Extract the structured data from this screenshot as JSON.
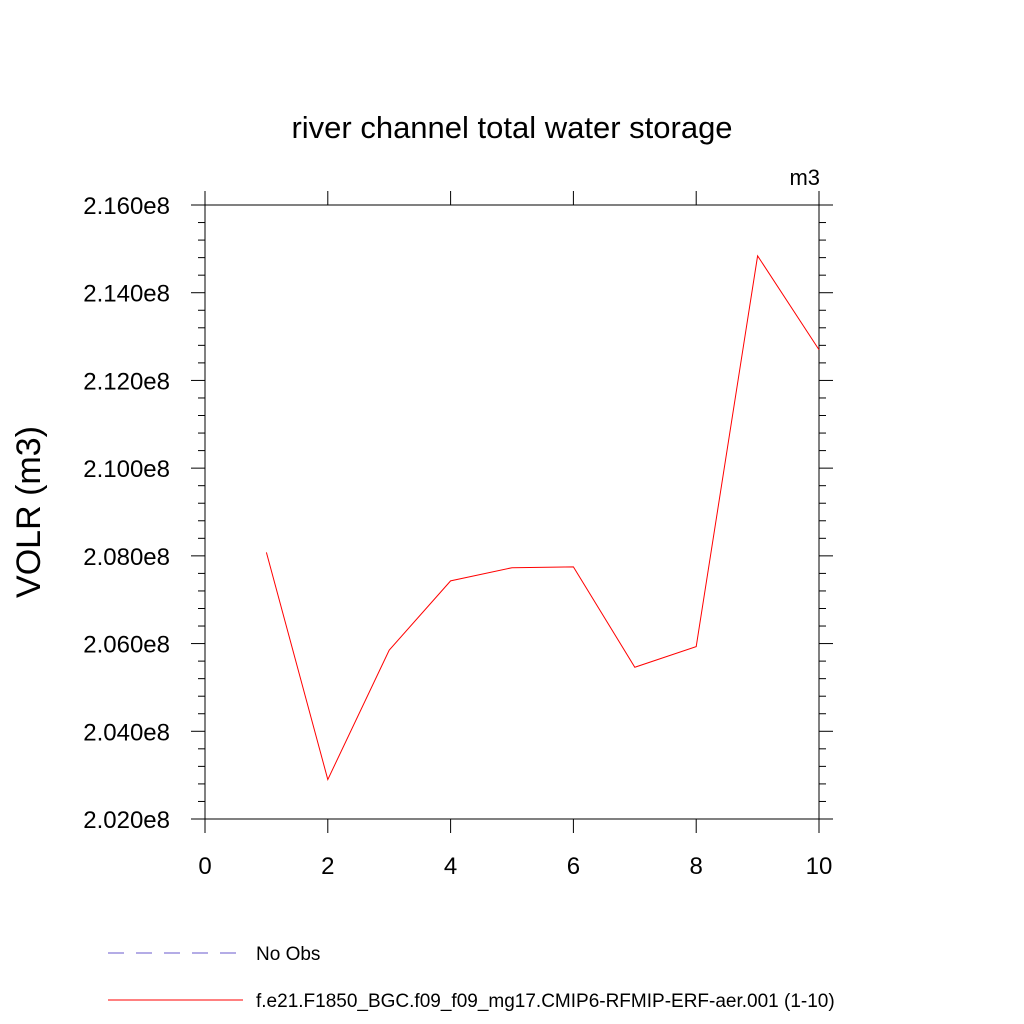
{
  "chart_data": {
    "type": "line",
    "title": "river channel total water storage",
    "units_label": "m3",
    "ylabel": "VOLR  (m3)",
    "xlabel": "",
    "xlim": [
      0,
      10
    ],
    "ylim": [
      202000000,
      216000000
    ],
    "x_ticks": [
      0,
      2,
      4,
      6,
      8,
      10
    ],
    "x_tick_labels": [
      "0",
      "2",
      "4",
      "6",
      "8",
      "10"
    ],
    "y_ticks": [
      202000000,
      204000000,
      206000000,
      208000000,
      210000000,
      212000000,
      214000000,
      216000000
    ],
    "y_tick_labels": [
      "2.020e8",
      "2.040e8",
      "2.060e8",
      "2.080e8",
      "2.100e8",
      "2.120e8",
      "2.140e8",
      "2.160e8"
    ],
    "grid": false,
    "legend_position": "bottom",
    "series": [
      {
        "name": "No Obs",
        "color": "#6a5acd",
        "dash": true,
        "x": [],
        "y": []
      },
      {
        "name": "f.e21.F1850_BGC.f09_f09_mg17.CMIP6-RFMIP-ERF-aer.001 (1-10)",
        "color": "#ff0000",
        "dash": false,
        "x": [
          1,
          2,
          3,
          4,
          5,
          6,
          7,
          8,
          9,
          10
        ],
        "y": [
          208080000,
          202900000,
          205850000,
          207430000,
          207730000,
          207750000,
          205460000,
          205930000,
          214840000,
          212700000
        ]
      }
    ]
  }
}
